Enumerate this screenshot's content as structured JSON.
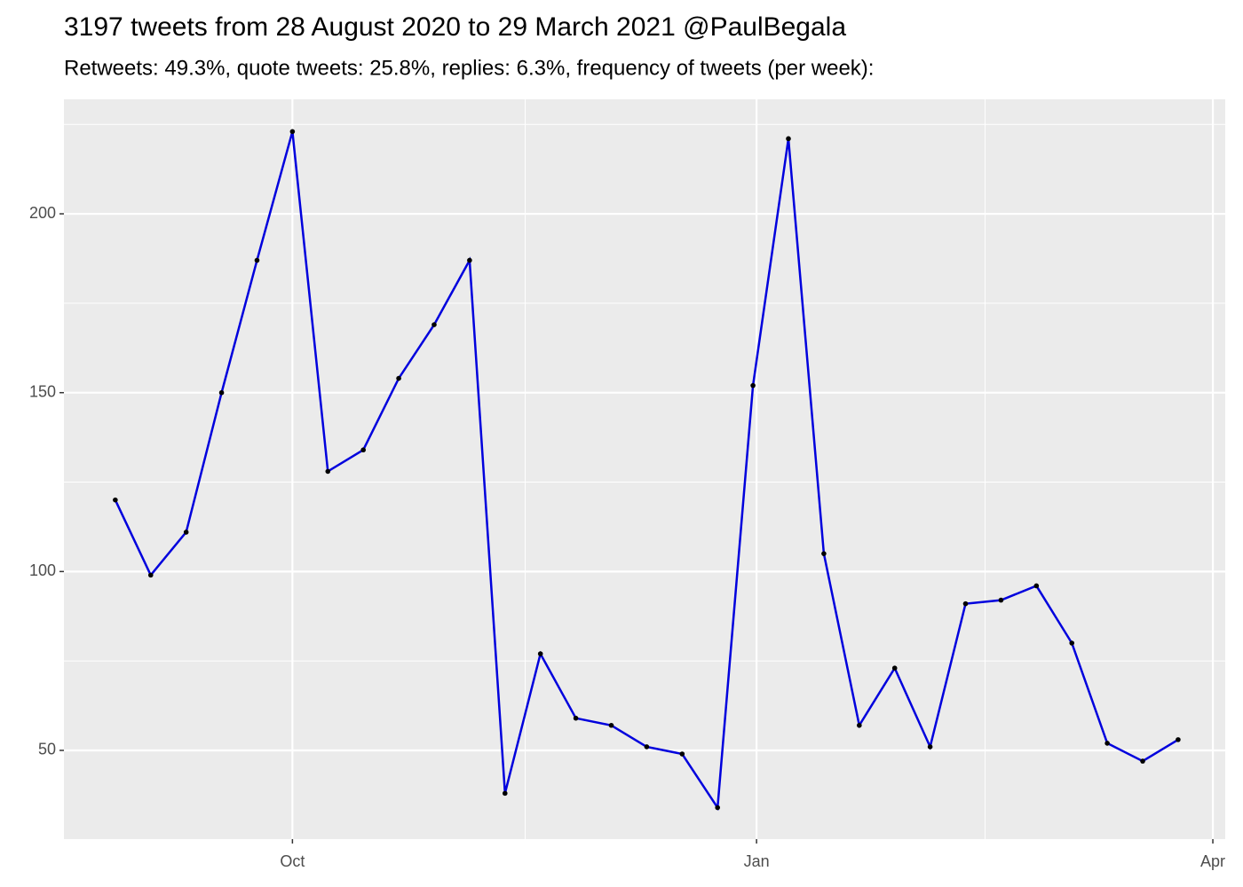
{
  "chart_data": {
    "type": "line",
    "title": "3197 tweets from 28 August 2020 to 29 March 2021 @PaulBegala",
    "subtitle": "Retweets: 49.3%, quote tweets: 25.8%, replies: 6.3%, frequency of tweets (per week):",
    "x": [
      0,
      1,
      2,
      3,
      4,
      5,
      6,
      7,
      8,
      9,
      10,
      11,
      12,
      13,
      14,
      15,
      16,
      17,
      18,
      19,
      20,
      21,
      22,
      23,
      24,
      25,
      26,
      27,
      28,
      29,
      30
    ],
    "series": [
      {
        "color": "#0000dd",
        "values": [
          120,
          99,
          111,
          150,
          187,
          223,
          128,
          134,
          154,
          169,
          187,
          38,
          77,
          59,
          57,
          51,
          49,
          34,
          152,
          221,
          105,
          57,
          73,
          51,
          91,
          92,
          96,
          80,
          52,
          47,
          53
        ]
      }
    ],
    "xlim": [
      -1.45,
      31.33
    ],
    "xticks": [
      {
        "value": 5,
        "label": "Oct"
      },
      {
        "value": 18.1,
        "label": "Jan"
      },
      {
        "value": 30.98,
        "label": "Apr"
      }
    ],
    "xminor": [
      11.57,
      24.55
    ],
    "ylim": [
      25.2,
      232
    ],
    "yticks": [
      50,
      100,
      150,
      200
    ],
    "yminor": [
      75,
      125,
      175,
      225
    ],
    "grid": true
  }
}
